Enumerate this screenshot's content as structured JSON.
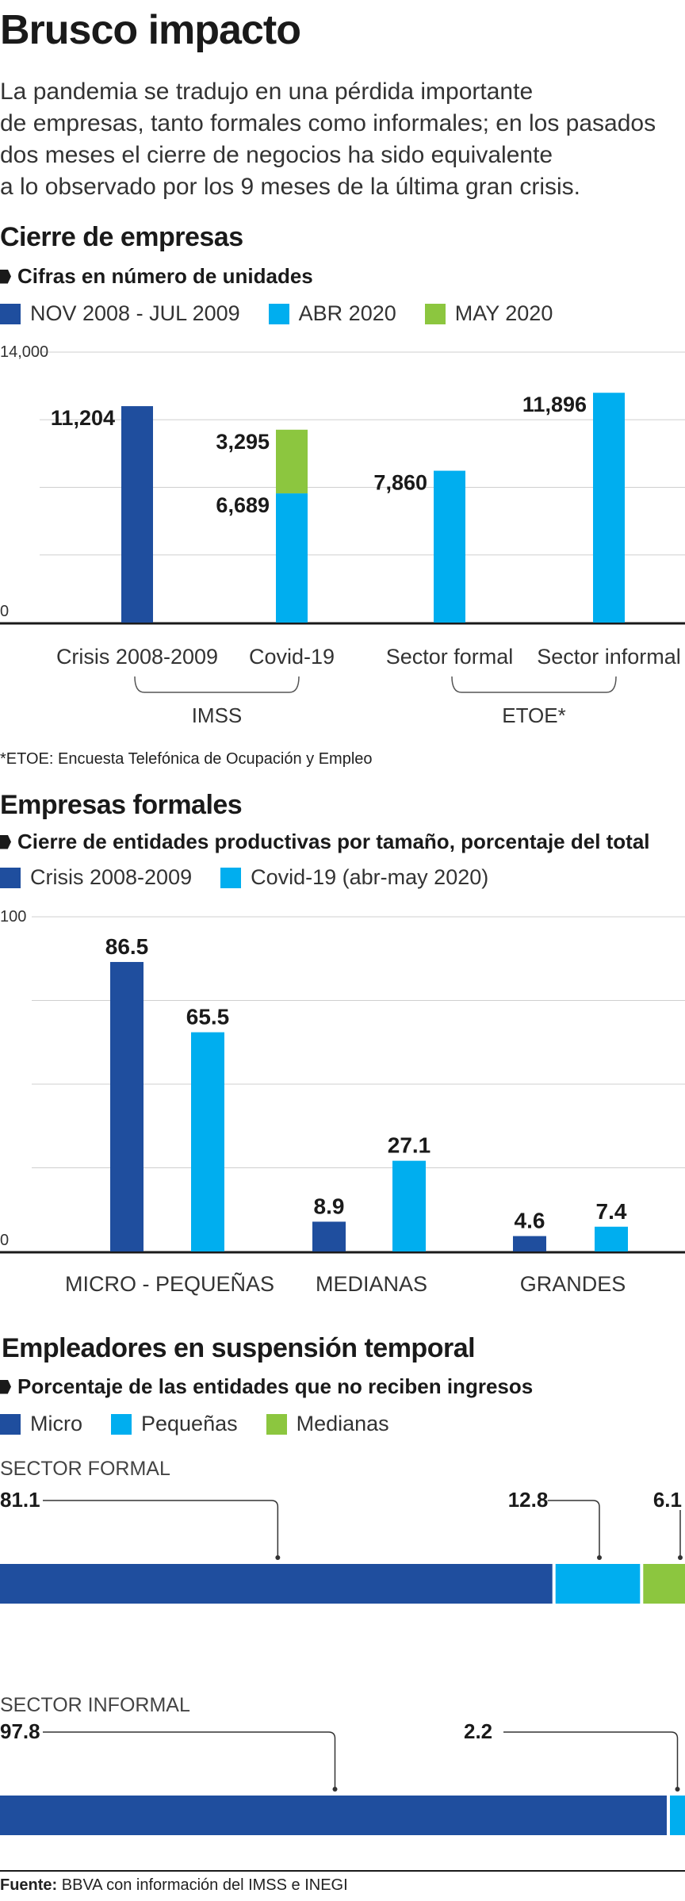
{
  "colors": {
    "dark_blue": "#1f4e9e",
    "light_blue": "#00aeef",
    "green": "#8cc63f",
    "grid": "#cfcfcf",
    "axis": "#1a1a1a"
  },
  "header": {
    "title": "Brusco impacto",
    "intro_lines": [
      "La pandemia se tradujo en una pérdida importante",
      "de empresas, tanto formales como informales; en los pasados",
      "dos meses el cierre de negocios ha sido equivalente",
      "a lo observado por los 9 meses de la última gran crisis."
    ]
  },
  "section1": {
    "heading": "Cierre de empresas",
    "subheading": "Cifras en número de unidades",
    "legend": [
      "NOV 2008 - JUL 2009",
      "ABR 2020",
      "MAY 2020"
    ],
    "group_labels": [
      "IMSS",
      "ETOE*"
    ],
    "note": "*ETOE: Encuesta Telefónica de Ocupación y Empleo"
  },
  "section2": {
    "heading": "Empresas formales",
    "subheading": "Cierre de entidades productivas por tamaño, porcentaje del total",
    "legend": [
      "Crisis 2008-2009",
      "Covid-19 (abr-may 2020)"
    ]
  },
  "section3": {
    "heading": "Empleadores en suspensión temporal",
    "subheading": "Porcentaje de las entidades que no reciben ingresos",
    "legend": [
      "Micro",
      "Pequeñas",
      "Medianas"
    ]
  },
  "source": {
    "label": "Fuente:",
    "text": " BBVA con información del IMSS e INEGI"
  },
  "chart_data": [
    {
      "type": "bar",
      "stacked": true,
      "categories": [
        "Crisis 2008-2009",
        "Covid-19",
        "Sector formal",
        "Sector informal"
      ],
      "series": [
        {
          "name": "NOV 2008 - JUL 2009",
          "values": [
            11204,
            null,
            null,
            null
          ]
        },
        {
          "name": "ABR 2020",
          "values": [
            null,
            6689,
            7860,
            11896
          ]
        },
        {
          "name": "MAY 2020",
          "values": [
            null,
            3295,
            null,
            null
          ]
        }
      ],
      "labels": [
        "11,204",
        "6,689",
        "3,295",
        "7,860",
        "11,896"
      ],
      "ytick_labels": [
        "14,000",
        "0"
      ],
      "ylim": [
        0,
        14000
      ],
      "grid": true
    },
    {
      "type": "bar",
      "categories": [
        "MICRO - PEQUEÑAS",
        "MEDIANAS",
        "GRANDES"
      ],
      "series": [
        {
          "name": "Crisis 2008-2009",
          "values": [
            86.5,
            8.9,
            4.6
          ]
        },
        {
          "name": "Covid-19 (abr-may 2020)",
          "values": [
            65.5,
            27.1,
            7.4
          ]
        }
      ],
      "ytick_labels": [
        "100",
        "0"
      ],
      "ylim": [
        0,
        100
      ],
      "grid": true
    },
    {
      "type": "bar",
      "orientation": "horizontal",
      "stacked": true,
      "categories": [
        "SECTOR FORMAL",
        "SECTOR INFORMAL"
      ],
      "series": [
        {
          "name": "Micro",
          "values": [
            81.1,
            97.8
          ]
        },
        {
          "name": "Pequeñas",
          "values": [
            12.8,
            2.2
          ]
        },
        {
          "name": "Medianas",
          "values": [
            6.1,
            null
          ]
        }
      ],
      "xlim": [
        0,
        100
      ]
    }
  ]
}
